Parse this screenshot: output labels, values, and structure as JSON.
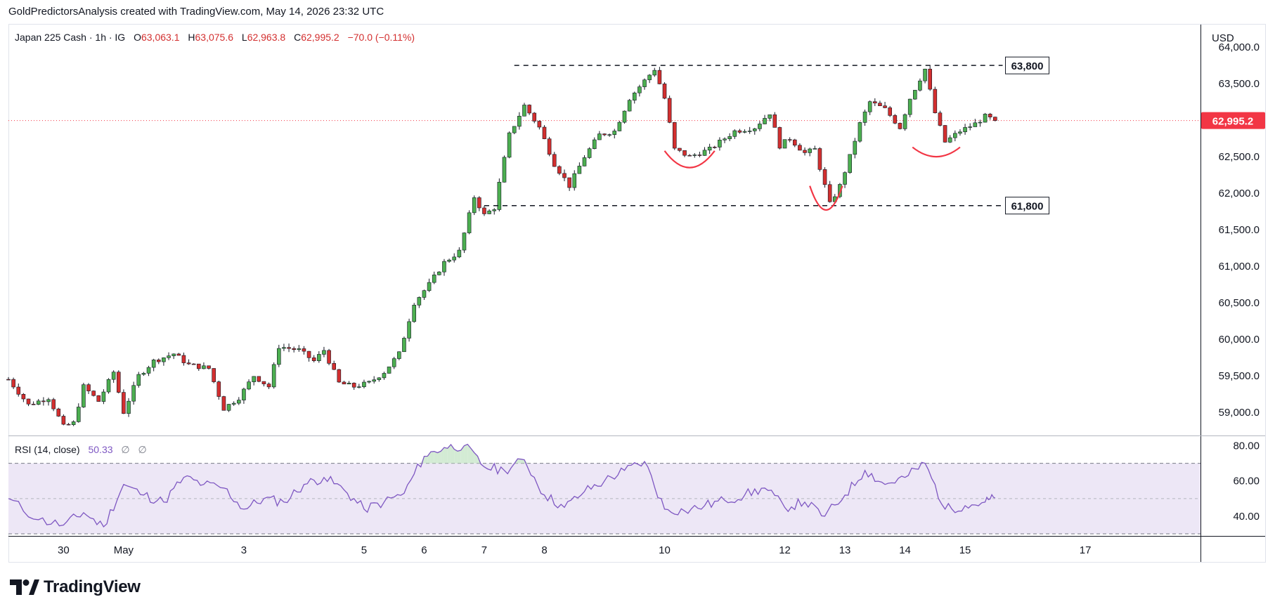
{
  "header": {
    "attribution": "GoldPredictorsAnalysis created with TradingView.com, May 14, 2026 23:32 UTC"
  },
  "legend": {
    "symbol": "Japan 225 Cash · 1h · IG",
    "open_label": "O",
    "open": "63,063.1",
    "high_label": "H",
    "high": "63,075.6",
    "low_label": "L",
    "low": "62,963.8",
    "close_label": "C",
    "close": "62,995.2",
    "change": "−70.0 (−0.11%)"
  },
  "currency": "USD",
  "last_price_label": "62,995.2",
  "logo_text": "TradingView",
  "colors": {
    "up": "#26a69a",
    "up_fill": "#4caf50",
    "down": "#ef5350",
    "down_fill": "#d32f2f",
    "rsi_line": "#7e57c2",
    "rsi_band": "#ede7f6",
    "last_price": "#f23645",
    "pattern_arcs": "#f23645"
  },
  "chart_data": [
    {
      "type": "candlestick",
      "title": "Japan 225 Cash · 1h · IG",
      "ylim": [
        58700,
        64300
      ],
      "y_ticks": [
        "64,000.0",
        "63,500.0",
        "63,000.0",
        "62,500.0",
        "62,000.0",
        "61,500.0",
        "61,000.0",
        "60,500.0",
        "60,000.0",
        "59,500.0",
        "59,000.0"
      ],
      "y_tick_values": [
        64000,
        63500,
        63000,
        62500,
        62000,
        61500,
        61000,
        60500,
        60000,
        59500,
        59000
      ],
      "x_tick_labels": [
        "30",
        "May",
        "3",
        "5",
        "6",
        "7",
        "8",
        "10",
        "12",
        "13",
        "14",
        "15",
        "17"
      ],
      "x_tick_dates": [
        "2026-04-30",
        "2026-05-01",
        "2026-05-03",
        "2026-05-05",
        "2026-05-06",
        "2026-05-07",
        "2026-05-08",
        "2026-05-10",
        "2026-05-12",
        "2026-05-13",
        "2026-05-14",
        "2026-05-15",
        "2026-05-17"
      ],
      "x_range": [
        "2026-04-29T02:00",
        "2026-05-18T22:00"
      ],
      "price_path": [
        [
          "2026-04-29T02:00",
          59450
        ],
        [
          "2026-04-29T10:00",
          59100
        ],
        [
          "2026-04-29T18:00",
          59200
        ],
        [
          "2026-04-30T00:00",
          58800
        ],
        [
          "2026-04-30T04:00",
          58850
        ],
        [
          "2026-04-30T08:00",
          59350
        ],
        [
          "2026-04-30T14:00",
          59150
        ],
        [
          "2026-04-30T20:00",
          59550
        ],
        [
          "2026-05-01T00:00",
          59000
        ],
        [
          "2026-05-01T06:00",
          59500
        ],
        [
          "2026-05-01T12:00",
          59700
        ],
        [
          "2026-05-01T20:00",
          59800
        ],
        [
          "2026-05-02T02:00",
          59650
        ],
        [
          "2026-05-02T10:00",
          59600
        ],
        [
          "2026-05-02T16:00",
          59050
        ],
        [
          "2026-05-02T22:00",
          59200
        ],
        [
          "2026-05-03T04:00",
          59500
        ],
        [
          "2026-05-03T10:00",
          59350
        ],
        [
          "2026-05-03T14:00",
          59900
        ],
        [
          "2026-05-03T22:00",
          59850
        ],
        [
          "2026-05-04T04:00",
          59700
        ],
        [
          "2026-05-04T08:00",
          59850
        ],
        [
          "2026-05-04T14:00",
          59400
        ],
        [
          "2026-05-04T20:00",
          59350
        ],
        [
          "2026-05-05T02:00",
          59400
        ],
        [
          "2026-05-05T08:00",
          59550
        ],
        [
          "2026-05-05T14:00",
          59800
        ],
        [
          "2026-05-05T20:00",
          60500
        ],
        [
          "2026-05-06T02:00",
          60750
        ],
        [
          "2026-05-06T08:00",
          61050
        ],
        [
          "2026-05-06T14:00",
          61200
        ],
        [
          "2026-05-06T20:00",
          61950
        ],
        [
          "2026-05-07T00:00",
          61700
        ],
        [
          "2026-05-07T04:00",
          61800
        ],
        [
          "2026-05-07T10:00",
          62800
        ],
        [
          "2026-05-07T16:00",
          63200
        ],
        [
          "2026-05-07T22:00",
          62900
        ],
        [
          "2026-05-08T04:00",
          62400
        ],
        [
          "2026-05-08T10:00",
          62100
        ],
        [
          "2026-05-08T16:00",
          62500
        ],
        [
          "2026-05-08T22:00",
          62800
        ],
        [
          "2026-05-09T04:00",
          62850
        ],
        [
          "2026-05-09T10:00",
          63300
        ],
        [
          "2026-05-09T20:00",
          63700
        ],
        [
          "2026-05-10T00:00",
          63300
        ],
        [
          "2026-05-10T04:00",
          62600
        ],
        [
          "2026-05-10T10:00",
          62500
        ],
        [
          "2026-05-10T18:00",
          62600
        ],
        [
          "2026-05-11T04:00",
          62850
        ],
        [
          "2026-05-11T12:00",
          62900
        ],
        [
          "2026-05-11T18:00",
          63100
        ],
        [
          "2026-05-11T22:00",
          62650
        ],
        [
          "2026-05-12T02:00",
          62750
        ],
        [
          "2026-05-12T08:00",
          62550
        ],
        [
          "2026-05-12T12:00",
          62600
        ],
        [
          "2026-05-12T18:00",
          61850
        ],
        [
          "2026-05-12T22:00",
          62100
        ],
        [
          "2026-05-13T02:00",
          62500
        ],
        [
          "2026-05-13T06:00",
          62950
        ],
        [
          "2026-05-13T10:00",
          63250
        ],
        [
          "2026-05-13T16:00",
          63150
        ],
        [
          "2026-05-13T22:00",
          62900
        ],
        [
          "2026-05-14T02:00",
          63300
        ],
        [
          "2026-05-14T08:00",
          63700
        ],
        [
          "2026-05-14T12:00",
          63100
        ],
        [
          "2026-05-14T16:00",
          62700
        ],
        [
          "2026-05-14T22:00",
          62850
        ],
        [
          "2026-05-15T04:00",
          62950
        ],
        [
          "2026-05-15T08:00",
          63050
        ],
        [
          "2026-05-15T12:00",
          62995
        ]
      ],
      "annotations": [
        {
          "label": "63,800",
          "value": 63750,
          "style": "dashed",
          "from": "2026-05-07T12:00",
          "to": "2026-05-15T15:00"
        },
        {
          "label": "61,800",
          "value": 61830,
          "style": "dashed",
          "from": "2026-05-07T00:00",
          "to": "2026-05-15T15:00"
        }
      ],
      "pattern_arcs": [
        {
          "from": "2026-05-10T00:00",
          "to": "2026-05-10T20:00",
          "high": 62580,
          "low": 62350
        },
        {
          "from": "2026-05-12T10:00",
          "to": "2026-05-12T23:00",
          "high": 62100,
          "low": 61770
        },
        {
          "from": "2026-05-14T03:00",
          "to": "2026-05-14T22:00",
          "high": 62630,
          "low": 62500
        }
      ],
      "last_price": 62995.2
    },
    {
      "type": "line",
      "title": "RSI (14, close)",
      "value_label": "50.33",
      "extra_labels": [
        "∅",
        "∅"
      ],
      "ylim": [
        30,
        85
      ],
      "y_ticks": [
        "80.00",
        "60.00",
        "40.00"
      ],
      "y_tick_values": [
        80,
        60,
        40
      ],
      "band": [
        30,
        70
      ],
      "middle": 50,
      "x": [
        "2026-04-29T02:00",
        "2026-04-29T14:00",
        "2026-04-30T00:00",
        "2026-04-30T08:00",
        "2026-04-30T16:00",
        "2026-05-01T00:00",
        "2026-05-01T08:00",
        "2026-05-01T16:00",
        "2026-05-02T00:00",
        "2026-05-02T08:00",
        "2026-05-02T16:00",
        "2026-05-03T00:00",
        "2026-05-03T08:00",
        "2026-05-03T16:00",
        "2026-05-04T00:00",
        "2026-05-04T08:00",
        "2026-05-04T16:00",
        "2026-05-05T00:00",
        "2026-05-05T08:00",
        "2026-05-05T16:00",
        "2026-05-06T00:00",
        "2026-05-06T08:00",
        "2026-05-06T16:00",
        "2026-05-07T00:00",
        "2026-05-07T08:00",
        "2026-05-07T16:00",
        "2026-05-08T00:00",
        "2026-05-08T08:00",
        "2026-05-08T16:00",
        "2026-05-09T00:00",
        "2026-05-09T08:00",
        "2026-05-09T16:00",
        "2026-05-10T00:00",
        "2026-05-10T08:00",
        "2026-05-10T16:00",
        "2026-05-11T00:00",
        "2026-05-11T08:00",
        "2026-05-11T16:00",
        "2026-05-12T00:00",
        "2026-05-12T08:00",
        "2026-05-12T16:00",
        "2026-05-13T00:00",
        "2026-05-13T08:00",
        "2026-05-13T16:00",
        "2026-05-14T00:00",
        "2026-05-14T08:00",
        "2026-05-14T16:00",
        "2026-05-15T00:00",
        "2026-05-15T08:00",
        "2026-05-15T12:00"
      ],
      "values": [
        50,
        38,
        35,
        42,
        34,
        58,
        52,
        48,
        62,
        58,
        56,
        44,
        50,
        48,
        58,
        62,
        55,
        44,
        48,
        53,
        74,
        79,
        80,
        68,
        66,
        72,
        52,
        45,
        54,
        60,
        66,
        71,
        44,
        43,
        46,
        49,
        52,
        56,
        45,
        48,
        40,
        52,
        66,
        58,
        62,
        70,
        44,
        46,
        48,
        50.33
      ]
    }
  ]
}
